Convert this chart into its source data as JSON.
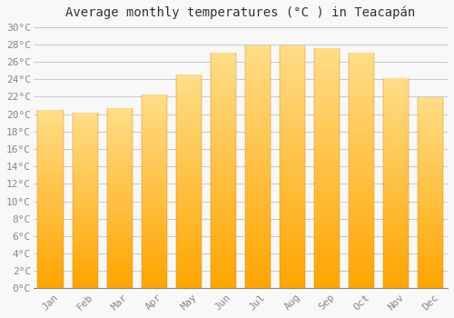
{
  "title": "Average monthly temperatures (°C ) in Teacapán",
  "months": [
    "Jan",
    "Feb",
    "Mar",
    "Apr",
    "May",
    "Jun",
    "Jul",
    "Aug",
    "Sep",
    "Oct",
    "Nov",
    "Dec"
  ],
  "values": [
    20.5,
    20.2,
    20.7,
    22.2,
    24.5,
    27.0,
    27.9,
    27.9,
    27.6,
    27.0,
    24.1,
    21.9
  ],
  "bar_color_top": "#FFDD88",
  "bar_color_bottom": "#FFA500",
  "bar_color_mid": "#FFC030",
  "ylim": [
    0,
    30
  ],
  "ytick_step": 2,
  "background_color": "#F8F8F8",
  "grid_color": "#CCCCCC",
  "title_fontsize": 10,
  "tick_fontsize": 8,
  "bar_width": 0.75,
  "tick_color": "#888888"
}
